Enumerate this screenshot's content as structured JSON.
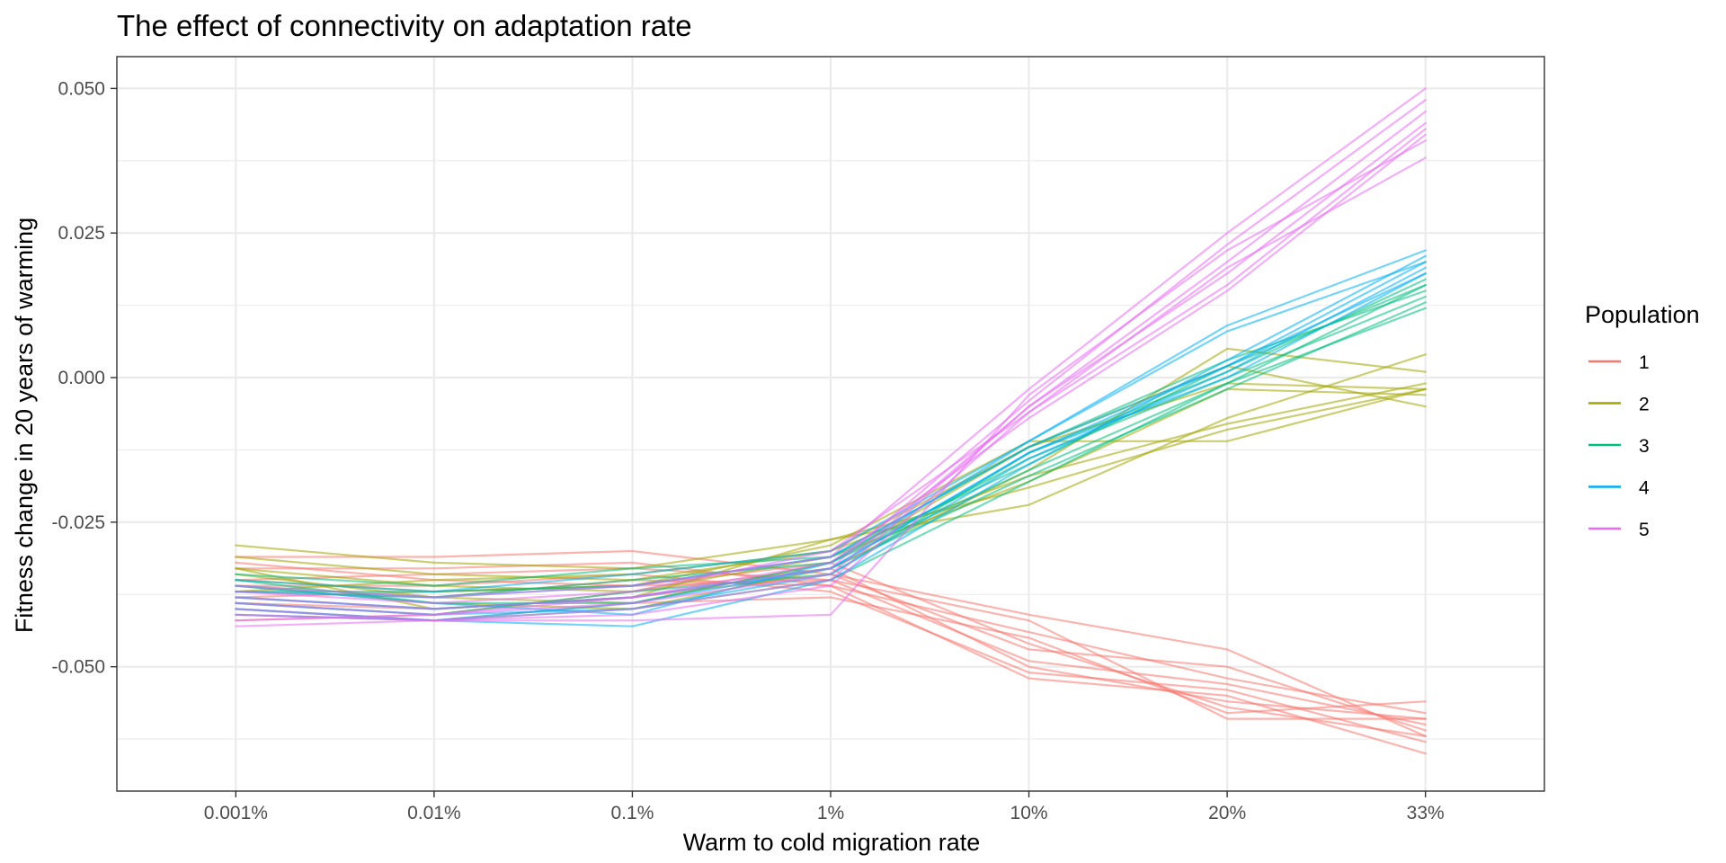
{
  "chart_data": {
    "type": "line",
    "title": "The effect of connectivity on adaptation rate",
    "xlabel": "Warm to cold migration rate",
    "ylabel": "Fitness change in 20 years of warming",
    "categories": [
      "0.001%",
      "0.01%",
      "0.1%",
      "1%",
      "10%",
      "20%",
      "33%"
    ],
    "y_ticks": [
      {
        "value": 0.05,
        "label": "0.050"
      },
      {
        "value": 0.025,
        "label": "0.025"
      },
      {
        "value": 0.0,
        "label": "0.000"
      },
      {
        "value": -0.025,
        "label": "-0.025"
      },
      {
        "value": -0.05,
        "label": "-0.050"
      }
    ],
    "ylim": [
      -0.0715,
      0.0555
    ],
    "grid": true,
    "legend": {
      "title": "Population",
      "position": "right"
    },
    "colors": {
      "1": "#F8766D",
      "2": "#A3A500",
      "3": "#00BF7D",
      "4": "#00B0F6",
      "5": "#E76BF3"
    },
    "groups": [
      {
        "name": "1",
        "replicates": [
          [
            -0.031,
            -0.031,
            -0.03,
            -0.034,
            -0.041,
            -0.047,
            -0.062
          ],
          [
            -0.033,
            -0.033,
            -0.032,
            -0.036,
            -0.044,
            -0.052,
            -0.058
          ],
          [
            -0.035,
            -0.034,
            -0.033,
            -0.035,
            -0.049,
            -0.053,
            -0.06
          ],
          [
            -0.036,
            -0.036,
            -0.034,
            -0.037,
            -0.051,
            -0.054,
            -0.063
          ],
          [
            -0.037,
            -0.038,
            -0.035,
            -0.036,
            -0.052,
            -0.055,
            -0.065
          ],
          [
            -0.038,
            -0.037,
            -0.036,
            -0.035,
            -0.042,
            -0.059,
            -0.059
          ],
          [
            -0.039,
            -0.04,
            -0.038,
            -0.034,
            -0.047,
            -0.05,
            -0.061
          ],
          [
            -0.041,
            -0.042,
            -0.039,
            -0.038,
            -0.045,
            -0.058,
            -0.056
          ],
          [
            -0.042,
            -0.041,
            -0.037,
            -0.033,
            -0.05,
            -0.056,
            -0.059
          ],
          [
            -0.032,
            -0.035,
            -0.036,
            -0.032,
            -0.046,
            -0.057,
            -0.062
          ]
        ]
      },
      {
        "name": "2",
        "replicates": [
          [
            -0.029,
            -0.032,
            -0.033,
            -0.028,
            -0.022,
            -0.007,
            0.004
          ],
          [
            -0.031,
            -0.034,
            -0.035,
            -0.03,
            -0.017,
            -0.008,
            -0.001
          ],
          [
            -0.033,
            -0.036,
            -0.037,
            -0.031,
            -0.018,
            -0.002,
            -0.003
          ],
          [
            -0.034,
            -0.038,
            -0.039,
            -0.032,
            -0.012,
            0.002,
            -0.005
          ],
          [
            -0.035,
            -0.037,
            -0.036,
            -0.029,
            -0.011,
            -0.011,
            -0.002
          ],
          [
            -0.036,
            -0.039,
            -0.04,
            -0.033,
            -0.016,
            0.005,
            0.001
          ],
          [
            -0.037,
            -0.035,
            -0.034,
            -0.03,
            -0.012,
            -0.001,
            -0.002
          ],
          [
            -0.033,
            -0.04,
            -0.038,
            -0.028,
            -0.019,
            -0.009,
            -0.002
          ]
        ]
      },
      {
        "name": "3",
        "replicates": [
          [
            -0.034,
            -0.036,
            -0.033,
            -0.031,
            -0.015,
            0.002,
            0.016
          ],
          [
            -0.036,
            -0.038,
            -0.035,
            -0.032,
            -0.016,
            -0.001,
            0.012
          ],
          [
            -0.037,
            -0.037,
            -0.036,
            -0.031,
            -0.012,
            0.003,
            0.015
          ],
          [
            -0.038,
            -0.04,
            -0.038,
            -0.033,
            -0.017,
            -0.002,
            0.013
          ],
          [
            -0.039,
            -0.041,
            -0.037,
            -0.034,
            -0.013,
            0.001,
            0.017
          ],
          [
            -0.035,
            -0.039,
            -0.039,
            -0.032,
            -0.014,
            0.0,
            0.014
          ],
          [
            -0.04,
            -0.042,
            -0.04,
            -0.035,
            -0.018,
            -0.001,
            0.016
          ]
        ]
      },
      {
        "name": "4",
        "replicates": [
          [
            -0.035,
            -0.037,
            -0.034,
            -0.03,
            -0.011,
            0.009,
            0.022
          ],
          [
            -0.037,
            -0.038,
            -0.036,
            -0.031,
            -0.012,
            0.002,
            0.02
          ],
          [
            -0.038,
            -0.04,
            -0.038,
            -0.033,
            -0.013,
            0.0,
            0.018
          ],
          [
            -0.039,
            -0.041,
            -0.04,
            -0.034,
            -0.014,
            0.001,
            0.019
          ],
          [
            -0.04,
            -0.042,
            -0.043,
            -0.035,
            -0.015,
            0.003,
            0.021
          ],
          [
            -0.036,
            -0.039,
            -0.041,
            -0.032,
            -0.011,
            0.008,
            0.02
          ],
          [
            -0.041,
            -0.042,
            -0.039,
            -0.033,
            -0.013,
            0.002,
            0.018
          ]
        ]
      },
      {
        "name": "5",
        "replicates": [
          [
            -0.036,
            -0.038,
            -0.036,
            -0.031,
            -0.002,
            0.025,
            0.05
          ],
          [
            -0.038,
            -0.04,
            -0.038,
            -0.033,
            -0.004,
            0.023,
            0.048
          ],
          [
            -0.039,
            -0.041,
            -0.039,
            -0.034,
            -0.005,
            0.02,
            0.046
          ],
          [
            -0.04,
            -0.042,
            -0.04,
            -0.035,
            -0.005,
            0.018,
            0.044
          ],
          [
            -0.041,
            -0.042,
            -0.041,
            -0.036,
            -0.006,
            0.016,
            0.043
          ],
          [
            -0.042,
            -0.041,
            -0.038,
            -0.032,
            -0.007,
            0.015,
            0.042
          ],
          [
            -0.043,
            -0.042,
            -0.042,
            -0.041,
            -0.003,
            0.022,
            0.041
          ],
          [
            -0.037,
            -0.039,
            -0.037,
            -0.03,
            -0.006,
            0.019,
            0.038
          ]
        ]
      }
    ]
  }
}
